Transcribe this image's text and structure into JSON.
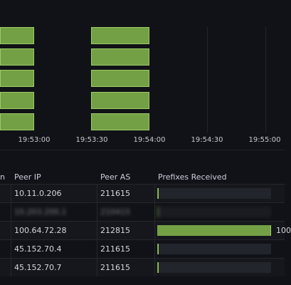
{
  "timeline": {
    "ticks": [
      "19:53:00",
      "19:53:30",
      "19:54:00",
      "19:54:30",
      "19:55:00"
    ],
    "status_color": "#73a045"
  },
  "table": {
    "headers": [
      "n",
      "Peer IP",
      "Peer AS",
      "Prefixes Received"
    ],
    "rows": [
      {
        "peer_ip": "10.11.0.206",
        "peer_as": "211615",
        "prefixes_fraction": 0.01,
        "prefixes_text": "",
        "redacted": false
      },
      {
        "peer_ip": "10.203.200.1",
        "peer_as": "210415",
        "prefixes_fraction": 0.01,
        "prefixes_text": "",
        "redacted": true
      },
      {
        "peer_ip": "100.64.72.28",
        "peer_as": "212815",
        "prefixes_fraction": 1.0,
        "prefixes_text": "100",
        "redacted": false
      },
      {
        "peer_ip": "45.152.70.4",
        "peer_as": "211615",
        "prefixes_fraction": 0.01,
        "prefixes_text": "",
        "redacted": false
      },
      {
        "peer_ip": "45.152.70.7",
        "peer_as": "211615",
        "prefixes_fraction": 0.01,
        "prefixes_text": "",
        "redacted": false
      }
    ]
  }
}
